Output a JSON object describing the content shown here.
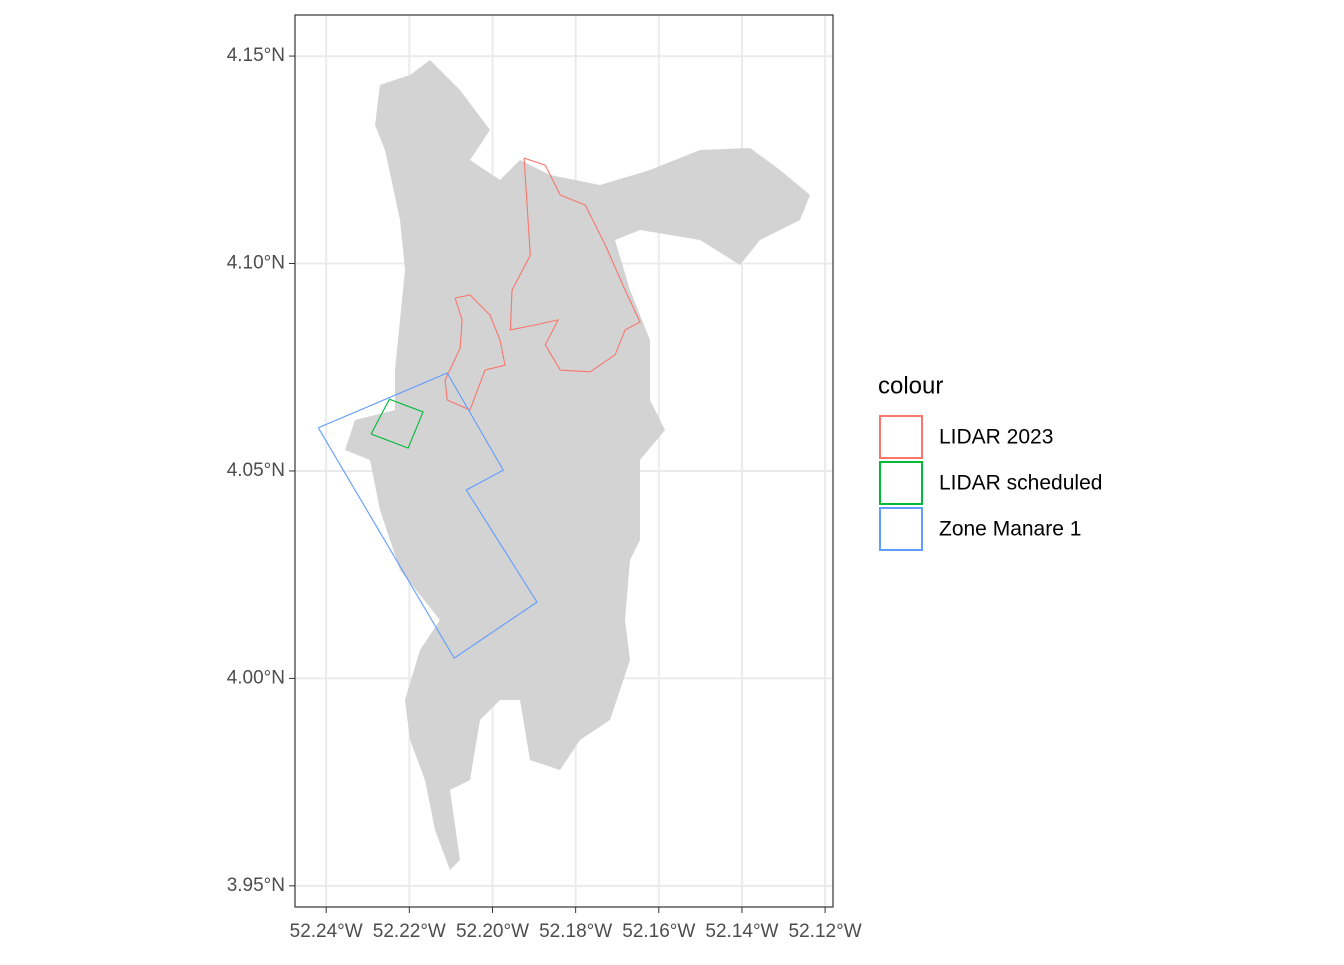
{
  "chart_data": {
    "type": "map",
    "xlim": [
      -52.2475,
      -52.1181
    ],
    "ylim": [
      3.9449,
      4.1599
    ],
    "xticks": [
      {
        "value": -52.24,
        "label": "52.24°W"
      },
      {
        "value": -52.22,
        "label": "52.22°W"
      },
      {
        "value": -52.2,
        "label": "52.20°W"
      },
      {
        "value": -52.18,
        "label": "52.18°W"
      },
      {
        "value": -52.16,
        "label": "52.16°W"
      },
      {
        "value": -52.14,
        "label": "52.14°W"
      },
      {
        "value": -52.12,
        "label": "52.12°W"
      }
    ],
    "yticks": [
      {
        "value": 3.95,
        "label": "3.95°N"
      },
      {
        "value": 4.0,
        "label": "4.00°N"
      },
      {
        "value": 4.05,
        "label": "4.05°N"
      },
      {
        "value": 4.1,
        "label": "4.10°N"
      },
      {
        "value": 4.15,
        "label": "4.15°N"
      }
    ],
    "grid": true,
    "legend_title": "colour",
    "series": [
      {
        "name": "LIDAR 2023",
        "color": "#F8766D",
        "x": [
          -52.1924,
          -52.1873,
          -52.1837,
          -52.1777,
          -52.1729,
          -52.1681,
          -52.1645,
          -52.1681,
          -52.1705,
          -52.1765,
          -52.1837,
          -52.1873,
          -52.1842,
          -52.1897,
          -52.1957,
          -52.1953,
          -52.1909,
          -52.1924,
          null,
          -52.209,
          -52.2054,
          -52.2006,
          -52.1982,
          -52.197,
          -52.2018,
          -52.2054,
          -52.2109,
          -52.2114,
          -52.2078,
          -52.2073,
          -52.209
        ],
        "y": [
          4.1254,
          4.1237,
          4.1165,
          4.1141,
          4.1045,
          4.0936,
          4.0859,
          4.084,
          4.078,
          4.0739,
          4.0743,
          4.0804,
          4.0864,
          4.0852,
          4.084,
          4.0936,
          4.102,
          4.1254,
          null,
          4.0917,
          4.0924,
          4.0876,
          4.0816,
          4.0755,
          4.0743,
          4.0647,
          4.0671,
          4.0719,
          4.0796,
          4.0864,
          4.0917
        ]
      },
      {
        "name": "LIDAR scheduled",
        "color": "#00BA38",
        "x": [
          -52.2292,
          -52.2248,
          -52.2167,
          -52.2203,
          -52.2292
        ],
        "y": [
          4.0589,
          4.0673,
          4.0642,
          4.0555,
          4.0589
        ]
      },
      {
        "name": "Zone Manare 1",
        "color": "#619CFF",
        "x": [
          -52.2419,
          -52.2109,
          -52.1974,
          -52.2063,
          -52.1893,
          -52.2092,
          -52.2419
        ],
        "y": [
          4.0604,
          4.0736,
          4.0502,
          4.0454,
          4.0184,
          4.0049,
          4.0604
        ]
      }
    ]
  }
}
